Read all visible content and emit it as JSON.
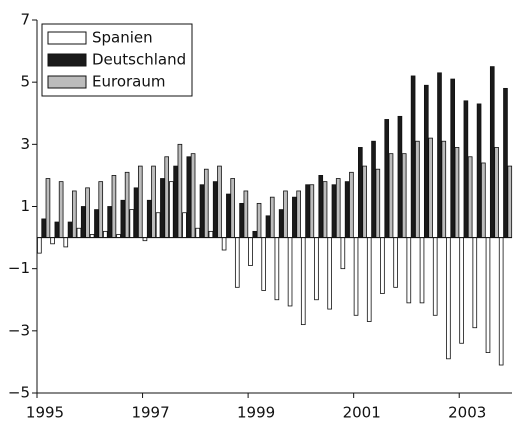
{
  "chart_data": {
    "type": "bar",
    "categories": [
      "1995",
      null,
      null,
      null,
      null,
      null,
      null,
      null,
      "1997",
      null,
      null,
      null,
      null,
      null,
      null,
      null,
      "1999",
      null,
      null,
      null,
      null,
      null,
      null,
      null,
      "2001",
      null,
      null,
      null,
      null,
      null,
      null,
      null,
      "2003",
      null,
      null,
      null
    ],
    "series": [
      {
        "name": "Spanien",
        "color": "#ffffff",
        "values": [
          -0.5,
          -0.2,
          -0.3,
          0.3,
          0.1,
          0.2,
          0.1,
          0.9,
          -0.1,
          0.8,
          1.8,
          0.8,
          0.3,
          0.2,
          -0.4,
          -1.6,
          -0.9,
          -1.7,
          -2.0,
          -2.2,
          -2.8,
          -2.0,
          -2.3,
          -1.0,
          -2.5,
          -2.7,
          -1.8,
          -1.6,
          -2.1,
          -2.1,
          -2.5,
          -3.9,
          -3.4,
          -2.9,
          -3.7,
          -4.1
        ]
      },
      {
        "name": "Deutschland",
        "color": "#1a1a1a",
        "values": [
          0.6,
          0.5,
          0.5,
          1.0,
          0.9,
          1.0,
          1.2,
          1.6,
          1.2,
          1.9,
          2.3,
          2.6,
          1.7,
          1.8,
          1.4,
          1.1,
          0.2,
          0.7,
          0.9,
          1.3,
          1.7,
          2.0,
          1.7,
          1.8,
          2.9,
          3.1,
          3.8,
          3.9,
          5.2,
          4.9,
          5.3,
          5.1,
          4.4,
          4.3,
          5.5,
          4.8
        ]
      },
      {
        "name": "Euroraum",
        "color": "#bcbcbc",
        "values": [
          1.9,
          1.8,
          1.5,
          1.6,
          1.8,
          2.0,
          2.1,
          2.3,
          2.3,
          2.6,
          3.0,
          2.7,
          2.2,
          2.3,
          1.9,
          1.5,
          1.1,
          1.3,
          1.5,
          1.5,
          1.7,
          1.8,
          1.9,
          2.1,
          2.3,
          2.2,
          2.7,
          2.7,
          3.1,
          3.2,
          3.1,
          2.9,
          2.6,
          2.4,
          2.9,
          2.3
        ]
      }
    ],
    "ylim": [
      -5,
      7
    ],
    "yticks": [
      {
        "value": -5,
        "label": "−5"
      },
      {
        "value": -3,
        "label": "−3"
      },
      {
        "value": -1,
        "label": "−1"
      },
      1,
      3,
      5,
      7
    ],
    "grid": false,
    "legend": "upper-left"
  }
}
